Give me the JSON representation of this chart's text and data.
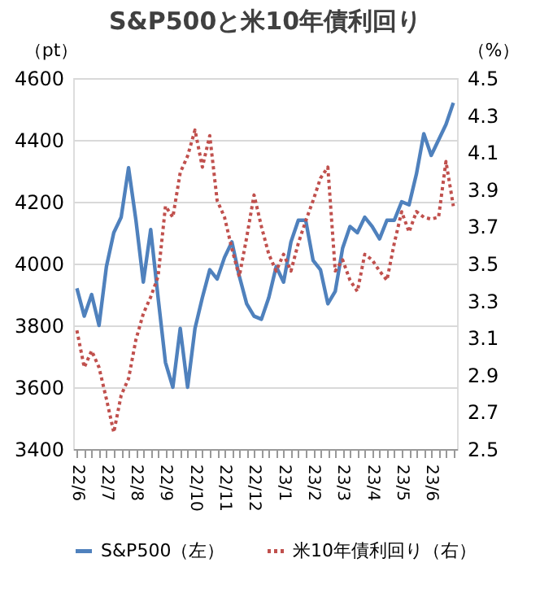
{
  "chart_data": {
    "type": "line",
    "title": "S&P500と米10年債利回り",
    "ylabel": "（pt）",
    "y2label": "（%）",
    "categories": [
      "22/6",
      null,
      null,
      null,
      "22/7",
      null,
      null,
      null,
      "22/8",
      null,
      null,
      null,
      "22/9",
      null,
      null,
      null,
      "22/10",
      null,
      null,
      null,
      "22/11",
      null,
      null,
      null,
      "22/12",
      null,
      null,
      null,
      "23/1",
      null,
      null,
      null,
      "23/2",
      null,
      null,
      null,
      "23/3",
      null,
      null,
      null,
      "23/4",
      null,
      null,
      null,
      "23/5",
      null,
      null,
      null,
      "23/6",
      null,
      null,
      null
    ],
    "series": [
      {
        "name": "S&P500（左）",
        "color": "#4f81bd",
        "line_style": "solid",
        "values": [
          3920,
          3830,
          3900,
          3800,
          3990,
          4100,
          4150,
          4310,
          4140,
          3940,
          4110,
          3890,
          3680,
          3600,
          3790,
          3600,
          3790,
          3890,
          3980,
          3950,
          4020,
          4070,
          3960,
          3870,
          3830,
          3820,
          3890,
          3990,
          3940,
          4070,
          4140,
          4140,
          4010,
          3980,
          3870,
          3910,
          4050,
          4120,
          4100,
          4150,
          4120,
          4080,
          4140,
          4140,
          4200,
          4190,
          4290,
          4420,
          4350,
          4400,
          4450,
          4520
        ]
      },
      {
        "name": "米10年債利回り（右）",
        "color": "#c0504d",
        "line_style": "dotted",
        "axis": "y2",
        "values": [
          3.14,
          2.94,
          3.03,
          2.94,
          2.77,
          2.59,
          2.79,
          2.88,
          3.09,
          3.23,
          3.32,
          3.43,
          3.81,
          3.75,
          3.99,
          4.08,
          4.22,
          4.02,
          4.19,
          3.84,
          3.75,
          3.58,
          3.43,
          3.64,
          3.87,
          3.7,
          3.55,
          3.46,
          3.55,
          3.46,
          3.61,
          3.73,
          3.84,
          3.96,
          4.02,
          3.46,
          3.52,
          3.41,
          3.35,
          3.55,
          3.52,
          3.46,
          3.41,
          3.61,
          3.78,
          3.67,
          3.78,
          3.75,
          3.74,
          3.75,
          4.05,
          3.81
        ]
      }
    ],
    "ylim": [
      3400,
      4600
    ],
    "yticks": [
      3400,
      3600,
      3800,
      4000,
      4200,
      4400,
      4600
    ],
    "y2lim": [
      2.5,
      4.5
    ],
    "y2ticks": [
      {
        "value": 2.5,
        "label": "2.5"
      },
      {
        "value": 2.7,
        "label": "2.7"
      },
      {
        "value": 2.9,
        "label": "2.9"
      },
      {
        "value": 3.1,
        "label": "3.1"
      },
      {
        "value": 3.3,
        "label": "3.3"
      },
      {
        "value": 3.5,
        "label": "3.5"
      },
      {
        "value": 3.7,
        "label": "3.7"
      },
      {
        "value": 3.9,
        "label": "3.9"
      },
      {
        "value": 4.1,
        "label": "4.1"
      },
      {
        "value": 4.3,
        "label": "4.3"
      },
      {
        "value": 4.5,
        "label": "4.5"
      }
    ],
    "grid": "y",
    "legend": "bottom"
  }
}
